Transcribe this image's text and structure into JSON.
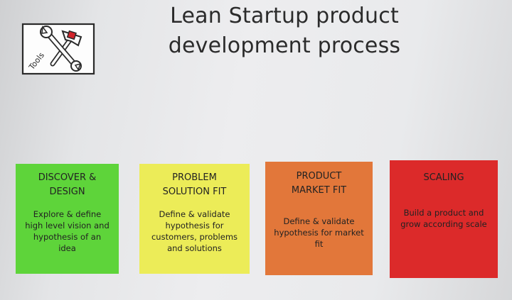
{
  "title": {
    "line1": "Lean Startup product",
    "line2": "development process"
  },
  "logo": {
    "text": "Tools",
    "icon": "wrench-and-hammer-icon"
  },
  "cards": [
    {
      "heading": [
        "DISCOVER &",
        "DESIGN"
      ],
      "body": [
        "Explore & define",
        "high level vision and",
        "hypothesis of an",
        "idea"
      ],
      "color": "#5ed43a"
    },
    {
      "heading": [
        "PROBLEM",
        "SOLUTION FIT"
      ],
      "body": [
        "Define & validate",
        "hypothesis for",
        "customers, problems",
        "and solutions"
      ],
      "color": "#ecec58"
    },
    {
      "heading": [
        "PRODUCT",
        "MARKET FIT"
      ],
      "body": [
        "Define & validate",
        "hypothesis for market",
        "fit"
      ],
      "color": "#e2773a"
    },
    {
      "heading": [
        "SCALING"
      ],
      "body": [
        "Build a product and",
        "grow according scale"
      ],
      "color": "#dc2a2a"
    }
  ]
}
